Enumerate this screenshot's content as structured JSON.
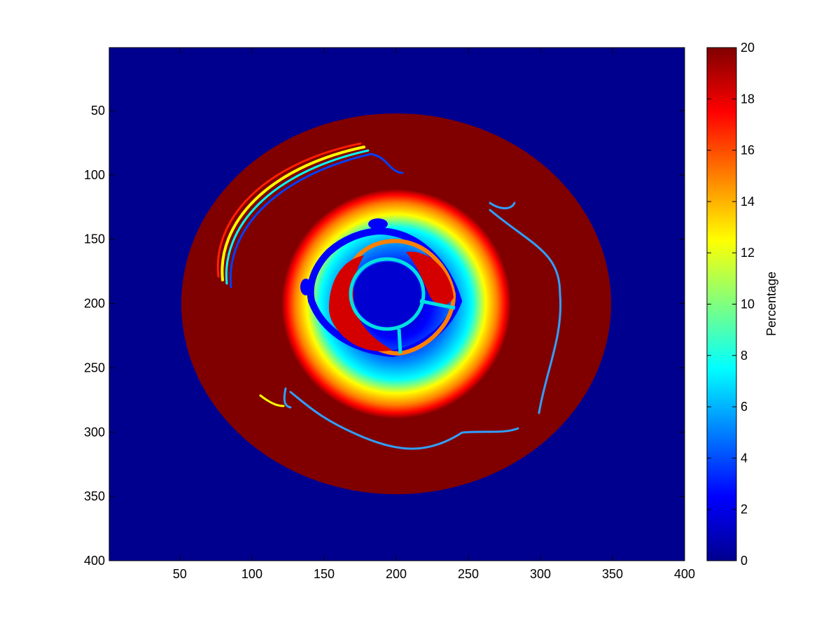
{
  "chart_data": {
    "type": "heatmap",
    "title": "",
    "xlabel": "",
    "ylabel": "",
    "xlim": [
      1,
      400
    ],
    "ylim": [
      1,
      400
    ],
    "y_reversed": true,
    "x_ticks": [
      50,
      100,
      150,
      200,
      250,
      300,
      350,
      400
    ],
    "x_tick_labels": [
      "50",
      "100",
      "150",
      "200",
      "250",
      "300",
      "350",
      "400"
    ],
    "y_ticks": [
      50,
      100,
      150,
      200,
      250,
      300,
      350,
      400
    ],
    "y_tick_labels": [
      "50",
      "100",
      "150",
      "200",
      "250",
      "300",
      "350",
      "400"
    ],
    "colormap": "jet",
    "colorbar": {
      "label": "Percentage",
      "clim": [
        0,
        20
      ],
      "ticks": [
        0,
        2,
        4,
        6,
        8,
        10,
        12,
        14,
        16,
        18,
        20
      ],
      "tick_labels": [
        "0",
        "2",
        "4",
        "6",
        "8",
        "10",
        "12",
        "14",
        "16",
        "18",
        "20"
      ]
    },
    "field_description": {
      "background_value": 0,
      "center": [
        200,
        200
      ],
      "outer_disk": {
        "rx": 150,
        "ry": 148,
        "value": 20
      },
      "gradient_annulus": {
        "outer_radius": 80,
        "value_at_outer": 20,
        "value_at_inner": 0
      },
      "inner_core": {
        "radius": 33,
        "value": 1
      }
    },
    "colors": {
      "background": "#00008f",
      "disk": "#800000",
      "axes_frame": "#000000"
    }
  }
}
